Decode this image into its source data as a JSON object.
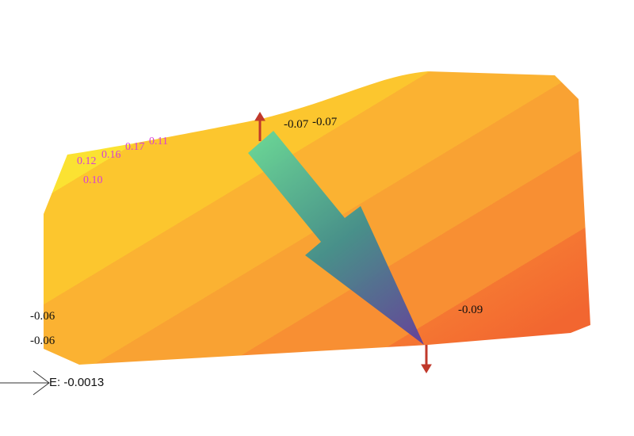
{
  "labels": {
    "top": [
      "-0.07",
      "-0.07"
    ],
    "magenta_row": [
      "0.12",
      "0.16",
      "0.17",
      "0.11"
    ],
    "magenta_below": "0.10",
    "left": [
      "-0.06",
      "-0.06"
    ],
    "right": "-0.09"
  },
  "legend": "E: -0.0013"
}
